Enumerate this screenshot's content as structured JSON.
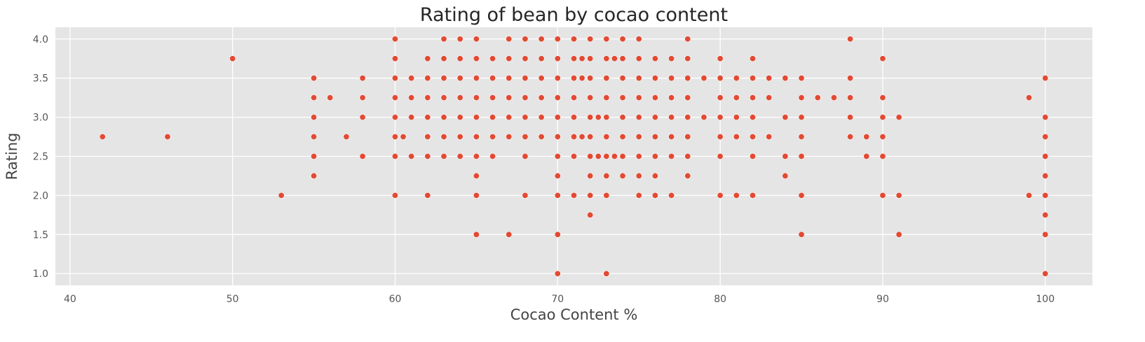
{
  "chart_data": {
    "type": "scatter",
    "title": "Rating of bean by cocao content",
    "xlabel": "Cocao Content %",
    "ylabel": "Rating",
    "xlim": [
      39.1,
      102.9
    ],
    "ylim": [
      0.85,
      4.15
    ],
    "xticks": [
      40,
      50,
      60,
      70,
      80,
      90,
      100
    ],
    "yticks": [
      1.0,
      1.5,
      2.0,
      2.5,
      3.0,
      3.5,
      4.0
    ],
    "grid": true,
    "background_color": "#e5e5e5",
    "grid_color": "#ffffff",
    "marker_color": "#e24a33",
    "points": [
      [
        42,
        2.75
      ],
      [
        46,
        2.75
      ],
      [
        50,
        3.75
      ],
      [
        53,
        2.0
      ],
      [
        55,
        3.5
      ],
      [
        55,
        3.25
      ],
      [
        55,
        3.0
      ],
      [
        55,
        2.75
      ],
      [
        55,
        2.5
      ],
      [
        55,
        2.25
      ],
      [
        56,
        3.25
      ],
      [
        57,
        2.75
      ],
      [
        58,
        3.5
      ],
      [
        58,
        3.25
      ],
      [
        58,
        3.0
      ],
      [
        58,
        2.5
      ],
      [
        60,
        4.0
      ],
      [
        60,
        3.75
      ],
      [
        60,
        3.5
      ],
      [
        60,
        3.25
      ],
      [
        60,
        3.0
      ],
      [
        60,
        2.75
      ],
      [
        60,
        2.5
      ],
      [
        60,
        2.0
      ],
      [
        60.5,
        2.75
      ],
      [
        61,
        3.5
      ],
      [
        61,
        3.25
      ],
      [
        61,
        3.0
      ],
      [
        61,
        2.5
      ],
      [
        62,
        3.75
      ],
      [
        62,
        3.5
      ],
      [
        62,
        3.25
      ],
      [
        62,
        3.0
      ],
      [
        62,
        2.75
      ],
      [
        62,
        2.5
      ],
      [
        62,
        2.0
      ],
      [
        63,
        4.0
      ],
      [
        63,
        3.75
      ],
      [
        63,
        3.5
      ],
      [
        63,
        3.25
      ],
      [
        63,
        3.0
      ],
      [
        63,
        2.75
      ],
      [
        63,
        2.5
      ],
      [
        64,
        4.0
      ],
      [
        64,
        3.75
      ],
      [
        64,
        3.5
      ],
      [
        64,
        3.25
      ],
      [
        64,
        3.0
      ],
      [
        64,
        2.75
      ],
      [
        64,
        2.5
      ],
      [
        65,
        4.0
      ],
      [
        65,
        3.75
      ],
      [
        65,
        3.5
      ],
      [
        65,
        3.25
      ],
      [
        65,
        3.0
      ],
      [
        65,
        2.75
      ],
      [
        65,
        2.5
      ],
      [
        65,
        2.25
      ],
      [
        65,
        2.0
      ],
      [
        65,
        1.5
      ],
      [
        66,
        3.75
      ],
      [
        66,
        3.5
      ],
      [
        66,
        3.25
      ],
      [
        66,
        3.0
      ],
      [
        66,
        2.75
      ],
      [
        66,
        2.5
      ],
      [
        67,
        4.0
      ],
      [
        67,
        3.75
      ],
      [
        67,
        3.5
      ],
      [
        67,
        3.25
      ],
      [
        67,
        3.0
      ],
      [
        67,
        2.75
      ],
      [
        67,
        1.5
      ],
      [
        68,
        4.0
      ],
      [
        68,
        3.75
      ],
      [
        68,
        3.5
      ],
      [
        68,
        3.25
      ],
      [
        68,
        3.0
      ],
      [
        68,
        2.75
      ],
      [
        68,
        2.5
      ],
      [
        68,
        2.0
      ],
      [
        69,
        4.0
      ],
      [
        69,
        3.75
      ],
      [
        69,
        3.5
      ],
      [
        69,
        3.25
      ],
      [
        69,
        3.0
      ],
      [
        69,
        2.75
      ],
      [
        70,
        4.0
      ],
      [
        70,
        3.75
      ],
      [
        70,
        3.5
      ],
      [
        70,
        3.25
      ],
      [
        70,
        3.0
      ],
      [
        70,
        2.75
      ],
      [
        70,
        2.5
      ],
      [
        70,
        2.25
      ],
      [
        70,
        2.0
      ],
      [
        70,
        1.5
      ],
      [
        70,
        1.0
      ],
      [
        71,
        4.0
      ],
      [
        71,
        3.75
      ],
      [
        71,
        3.5
      ],
      [
        71,
        3.25
      ],
      [
        71,
        3.0
      ],
      [
        71,
        2.75
      ],
      [
        71,
        2.5
      ],
      [
        71,
        2.0
      ],
      [
        71.5,
        3.75
      ],
      [
        71.5,
        3.5
      ],
      [
        71.5,
        2.75
      ],
      [
        72,
        4.0
      ],
      [
        72,
        3.75
      ],
      [
        72,
        3.5
      ],
      [
        72,
        3.25
      ],
      [
        72,
        3.0
      ],
      [
        72,
        2.75
      ],
      [
        72,
        2.5
      ],
      [
        72,
        2.25
      ],
      [
        72,
        2.0
      ],
      [
        72,
        1.75
      ],
      [
        72.5,
        3.0
      ],
      [
        72.5,
        2.5
      ],
      [
        73,
        4.0
      ],
      [
        73,
        3.75
      ],
      [
        73,
        3.5
      ],
      [
        73,
        3.25
      ],
      [
        73,
        3.0
      ],
      [
        73,
        2.75
      ],
      [
        73,
        2.5
      ],
      [
        73,
        2.25
      ],
      [
        73,
        2.0
      ],
      [
        73,
        1.0
      ],
      [
        73.5,
        3.75
      ],
      [
        73.5,
        2.5
      ],
      [
        74,
        4.0
      ],
      [
        74,
        3.75
      ],
      [
        74,
        3.5
      ],
      [
        74,
        3.25
      ],
      [
        74,
        3.0
      ],
      [
        74,
        2.75
      ],
      [
        74,
        2.5
      ],
      [
        74,
        2.25
      ],
      [
        75,
        4.0
      ],
      [
        75,
        3.75
      ],
      [
        75,
        3.5
      ],
      [
        75,
        3.25
      ],
      [
        75,
        3.0
      ],
      [
        75,
        2.75
      ],
      [
        75,
        2.5
      ],
      [
        75,
        2.25
      ],
      [
        75,
        2.0
      ],
      [
        76,
        3.75
      ],
      [
        76,
        3.5
      ],
      [
        76,
        3.25
      ],
      [
        76,
        3.0
      ],
      [
        76,
        2.75
      ],
      [
        76,
        2.5
      ],
      [
        76,
        2.25
      ],
      [
        76,
        2.0
      ],
      [
        77,
        3.75
      ],
      [
        77,
        3.5
      ],
      [
        77,
        3.25
      ],
      [
        77,
        3.0
      ],
      [
        77,
        2.75
      ],
      [
        77,
        2.5
      ],
      [
        77,
        2.0
      ],
      [
        78,
        4.0
      ],
      [
        78,
        3.75
      ],
      [
        78,
        3.5
      ],
      [
        78,
        3.25
      ],
      [
        78,
        3.0
      ],
      [
        78,
        2.75
      ],
      [
        78,
        2.5
      ],
      [
        78,
        2.25
      ],
      [
        79,
        3.5
      ],
      [
        79,
        3.0
      ],
      [
        80,
        3.75
      ],
      [
        80,
        3.5
      ],
      [
        80,
        3.25
      ],
      [
        80,
        3.0
      ],
      [
        80,
        2.75
      ],
      [
        80,
        2.5
      ],
      [
        80,
        2.0
      ],
      [
        81,
        3.5
      ],
      [
        81,
        3.25
      ],
      [
        81,
        3.0
      ],
      [
        81,
        2.75
      ],
      [
        81,
        2.0
      ],
      [
        82,
        3.75
      ],
      [
        82,
        3.5
      ],
      [
        82,
        3.25
      ],
      [
        82,
        3.0
      ],
      [
        82,
        2.75
      ],
      [
        82,
        2.5
      ],
      [
        82,
        2.0
      ],
      [
        83,
        3.5
      ],
      [
        83,
        3.25
      ],
      [
        83,
        2.75
      ],
      [
        84,
        3.5
      ],
      [
        84,
        3.0
      ],
      [
        84,
        2.5
      ],
      [
        84,
        2.25
      ],
      [
        85,
        3.5
      ],
      [
        85,
        3.25
      ],
      [
        85,
        3.0
      ],
      [
        85,
        2.75
      ],
      [
        85,
        2.5
      ],
      [
        85,
        2.0
      ],
      [
        85,
        1.5
      ],
      [
        86,
        3.25
      ],
      [
        87,
        3.25
      ],
      [
        88,
        4.0
      ],
      [
        88,
        3.5
      ],
      [
        88,
        3.25
      ],
      [
        88,
        3.0
      ],
      [
        88,
        2.75
      ],
      [
        89,
        2.75
      ],
      [
        89,
        2.5
      ],
      [
        90,
        3.75
      ],
      [
        90,
        3.25
      ],
      [
        90,
        3.0
      ],
      [
        90,
        2.75
      ],
      [
        90,
        2.5
      ],
      [
        90,
        2.0
      ],
      [
        91,
        3.0
      ],
      [
        91,
        2.0
      ],
      [
        91,
        1.5
      ],
      [
        99,
        3.25
      ],
      [
        99,
        2.0
      ],
      [
        100,
        3.5
      ],
      [
        100,
        3.0
      ],
      [
        100,
        2.75
      ],
      [
        100,
        2.5
      ],
      [
        100,
        2.25
      ],
      [
        100,
        2.0
      ],
      [
        100,
        1.75
      ],
      [
        100,
        1.5
      ],
      [
        100,
        1.0
      ]
    ]
  }
}
